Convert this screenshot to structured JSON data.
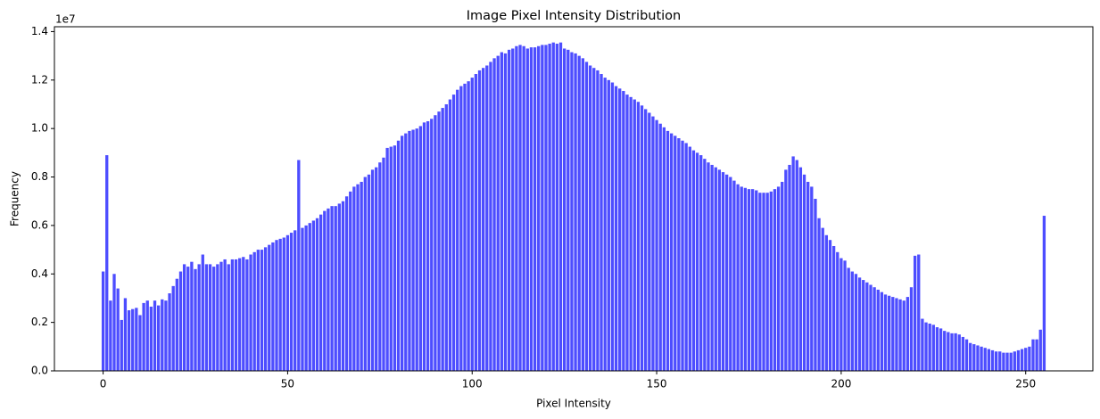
{
  "chart_data": {
    "type": "bar",
    "title": "Image Pixel Intensity Distribution",
    "x_label": "Pixel Intensity",
    "y_label": "Frequency",
    "y_offset_label": "1e7",
    "color": "#4d4dff",
    "x": [
      0,
      1,
      2,
      3,
      4,
      5,
      6,
      7,
      8,
      9,
      10,
      11,
      12,
      13,
      14,
      15,
      16,
      17,
      18,
      19,
      20,
      21,
      22,
      23,
      24,
      25,
      26,
      27,
      28,
      29,
      30,
      31,
      32,
      33,
      34,
      35,
      36,
      37,
      38,
      39,
      40,
      41,
      42,
      43,
      44,
      45,
      46,
      47,
      48,
      49,
      50,
      51,
      52,
      53,
      54,
      55,
      56,
      57,
      58,
      59,
      60,
      61,
      62,
      63,
      64,
      65,
      66,
      67,
      68,
      69,
      70,
      71,
      72,
      73,
      74,
      75,
      76,
      77,
      78,
      79,
      80,
      81,
      82,
      83,
      84,
      85,
      86,
      87,
      88,
      89,
      90,
      91,
      92,
      93,
      94,
      95,
      96,
      97,
      98,
      99,
      100,
      101,
      102,
      103,
      104,
      105,
      106,
      107,
      108,
      109,
      110,
      111,
      112,
      113,
      114,
      115,
      116,
      117,
      118,
      119,
      120,
      121,
      122,
      123,
      124,
      125,
      126,
      127,
      128,
      129,
      130,
      131,
      132,
      133,
      134,
      135,
      136,
      137,
      138,
      139,
      140,
      141,
      142,
      143,
      144,
      145,
      146,
      147,
      148,
      149,
      150,
      151,
      152,
      153,
      154,
      155,
      156,
      157,
      158,
      159,
      160,
      161,
      162,
      163,
      164,
      165,
      166,
      167,
      168,
      169,
      170,
      171,
      172,
      173,
      174,
      175,
      176,
      177,
      178,
      179,
      180,
      181,
      182,
      183,
      184,
      185,
      186,
      187,
      188,
      189,
      190,
      191,
      192,
      193,
      194,
      195,
      196,
      197,
      198,
      199,
      200,
      201,
      202,
      203,
      204,
      205,
      206,
      207,
      208,
      209,
      210,
      211,
      212,
      213,
      214,
      215,
      216,
      217,
      218,
      219,
      220,
      221,
      222,
      223,
      224,
      225,
      226,
      227,
      228,
      229,
      230,
      231,
      232,
      233,
      234,
      235,
      236,
      237,
      238,
      239,
      240,
      241,
      242,
      243,
      244,
      245,
      246,
      247,
      248,
      249,
      250,
      251,
      252,
      253,
      254,
      255
    ],
    "values": [
      0.41,
      0.89,
      0.29,
      0.4,
      0.34,
      0.21,
      0.3,
      0.25,
      0.255,
      0.26,
      0.23,
      0.28,
      0.29,
      0.265,
      0.29,
      0.27,
      0.295,
      0.29,
      0.32,
      0.35,
      0.38,
      0.41,
      0.44,
      0.43,
      0.45,
      0.42,
      0.44,
      0.48,
      0.44,
      0.44,
      0.43,
      0.44,
      0.45,
      0.46,
      0.44,
      0.46,
      0.46,
      0.465,
      0.47,
      0.46,
      0.48,
      0.49,
      0.5,
      0.5,
      0.51,
      0.52,
      0.53,
      0.54,
      0.545,
      0.55,
      0.56,
      0.57,
      0.58,
      0.87,
      0.59,
      0.6,
      0.61,
      0.62,
      0.63,
      0.645,
      0.66,
      0.67,
      0.68,
      0.68,
      0.69,
      0.7,
      0.72,
      0.74,
      0.76,
      0.77,
      0.78,
      0.8,
      0.81,
      0.83,
      0.84,
      0.86,
      0.88,
      0.92,
      0.925,
      0.93,
      0.95,
      0.97,
      0.98,
      0.99,
      0.995,
      1.0,
      1.01,
      1.025,
      1.03,
      1.04,
      1.055,
      1.07,
      1.085,
      1.1,
      1.12,
      1.14,
      1.16,
      1.175,
      1.185,
      1.195,
      1.21,
      1.225,
      1.24,
      1.25,
      1.26,
      1.275,
      1.29,
      1.3,
      1.315,
      1.31,
      1.325,
      1.33,
      1.34,
      1.345,
      1.34,
      1.33,
      1.335,
      1.335,
      1.34,
      1.345,
      1.345,
      1.35,
      1.355,
      1.35,
      1.355,
      1.33,
      1.325,
      1.315,
      1.31,
      1.3,
      1.29,
      1.275,
      1.26,
      1.25,
      1.24,
      1.225,
      1.21,
      1.2,
      1.19,
      1.175,
      1.165,
      1.155,
      1.14,
      1.13,
      1.12,
      1.11,
      1.095,
      1.08,
      1.065,
      1.05,
      1.035,
      1.02,
      1.005,
      0.99,
      0.98,
      0.97,
      0.96,
      0.95,
      0.94,
      0.925,
      0.91,
      0.9,
      0.89,
      0.875,
      0.86,
      0.85,
      0.84,
      0.83,
      0.82,
      0.81,
      0.8,
      0.785,
      0.77,
      0.76,
      0.755,
      0.75,
      0.75,
      0.745,
      0.735,
      0.735,
      0.735,
      0.74,
      0.75,
      0.76,
      0.78,
      0.83,
      0.85,
      0.885,
      0.87,
      0.84,
      0.81,
      0.78,
      0.76,
      0.71,
      0.63,
      0.59,
      0.56,
      0.54,
      0.515,
      0.49,
      0.465,
      0.455,
      0.425,
      0.41,
      0.4,
      0.385,
      0.375,
      0.365,
      0.355,
      0.345,
      0.335,
      0.325,
      0.315,
      0.31,
      0.305,
      0.3,
      0.295,
      0.29,
      0.305,
      0.345,
      0.475,
      0.48,
      0.215,
      0.2,
      0.195,
      0.19,
      0.18,
      0.175,
      0.165,
      0.16,
      0.155,
      0.155,
      0.15,
      0.14,
      0.13,
      0.115,
      0.11,
      0.105,
      0.1,
      0.095,
      0.09,
      0.085,
      0.08,
      0.08,
      0.075,
      0.075,
      0.075,
      0.08,
      0.085,
      0.09,
      0.095,
      0.1,
      0.13,
      0.13,
      0.17,
      0.64
    ],
    "xlim": [
      -13.2,
      268.2
    ],
    "xticks": [
      0,
      50,
      100,
      150,
      200,
      250
    ],
    "ylim": [
      0,
      1.42
    ],
    "yticks": [
      {
        "value": 0,
        "label": "0.0"
      },
      0.2,
      0.4,
      0.6,
      0.8,
      {
        "value": 1,
        "label": "1.0"
      },
      1.2,
      1.4
    ],
    "grid": false
  }
}
